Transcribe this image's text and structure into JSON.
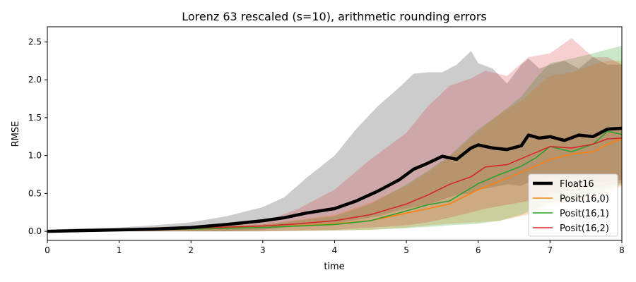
{
  "chart_data": {
    "type": "line",
    "title": "Lorenz 63 rescaled (s=10), arithmetic rounding errors",
    "xlabel": "time",
    "ylabel": "RMSE",
    "xlim": [
      0,
      8
    ],
    "ylim": [
      -0.12,
      2.7
    ],
    "x_ticks": [
      0,
      1,
      2,
      3,
      4,
      5,
      6,
      7,
      8
    ],
    "y_ticks": [
      0.0,
      0.5,
      1.0,
      1.5,
      2.0,
      2.5
    ],
    "x_tick_labels": [
      "0",
      "1",
      "2",
      "3",
      "4",
      "5",
      "6",
      "7",
      "8"
    ],
    "y_tick_labels": [
      "0.0",
      "0.5",
      "1.0",
      "1.5",
      "2.0",
      "2.5"
    ],
    "grid": false,
    "legend_position": "lower-right",
    "series": [
      {
        "name": "Float16",
        "color": "#000000",
        "line_width": "thick",
        "x": [
          0,
          0.5,
          1,
          1.5,
          2,
          2.5,
          3,
          3.3,
          3.6,
          4,
          4.3,
          4.6,
          4.9,
          5.1,
          5.3,
          5.5,
          5.7,
          5.9,
          6.0,
          6.2,
          6.4,
          6.6,
          6.7,
          6.85,
          7.0,
          7.2,
          7.4,
          7.6,
          7.8,
          8.0
        ],
        "y": [
          0.0,
          0.01,
          0.02,
          0.03,
          0.05,
          0.09,
          0.14,
          0.18,
          0.24,
          0.3,
          0.4,
          0.53,
          0.68,
          0.82,
          0.9,
          0.99,
          0.95,
          1.1,
          1.14,
          1.1,
          1.08,
          1.13,
          1.27,
          1.23,
          1.25,
          1.2,
          1.27,
          1.25,
          1.35,
          1.36
        ],
        "band_upper": [
          0.02,
          0.04,
          0.05,
          0.08,
          0.12,
          0.2,
          0.32,
          0.45,
          0.7,
          1.0,
          1.35,
          1.65,
          1.9,
          2.08,
          2.1,
          2.1,
          2.2,
          2.38,
          2.22,
          2.15,
          1.95,
          2.2,
          2.28,
          2.15,
          2.2,
          2.25,
          2.15,
          2.3,
          2.2,
          2.2
        ],
        "band_lower": [
          0.0,
          0.0,
          0.0,
          0.0,
          0.0,
          0.0,
          0.02,
          0.05,
          0.08,
          0.1,
          0.15,
          0.2,
          0.28,
          0.32,
          0.35,
          0.42,
          0.48,
          0.5,
          0.55,
          0.58,
          0.62,
          0.6,
          0.65,
          0.66,
          0.7,
          0.7,
          0.72,
          0.65,
          0.66,
          0.68
        ],
        "band_color": "#999999"
      },
      {
        "name": "Posit(16,0)",
        "color": "#ff7f0e",
        "line_width": "thin",
        "x": [
          0,
          1,
          2,
          3,
          4,
          4.5,
          5,
          5.3,
          5.6,
          6.0,
          6.3,
          6.6,
          6.8,
          7.0,
          7.3,
          7.6,
          7.8,
          8.0
        ],
        "y": [
          0.0,
          0.02,
          0.03,
          0.05,
          0.1,
          0.14,
          0.24,
          0.3,
          0.36,
          0.55,
          0.66,
          0.78,
          0.86,
          0.95,
          1.02,
          1.05,
          1.15,
          1.22
        ],
        "band_upper": [
          0.01,
          0.03,
          0.05,
          0.09,
          0.22,
          0.38,
          0.6,
          0.78,
          0.98,
          1.32,
          1.55,
          1.72,
          1.9,
          2.05,
          2.1,
          2.2,
          2.25,
          2.25
        ],
        "band_lower": [
          0.0,
          0.0,
          0.0,
          0.0,
          0.01,
          0.02,
          0.05,
          0.08,
          0.1,
          0.12,
          0.14,
          0.2,
          0.25,
          0.35,
          0.4,
          0.42,
          0.5,
          0.6
        ],
        "band_color": "#ff7f0e"
      },
      {
        "name": "Posit(16,1)",
        "color": "#2ca02c",
        "line_width": "thin",
        "x": [
          0,
          1,
          2,
          3,
          4,
          4.5,
          5,
          5.3,
          5.6,
          6.0,
          6.3,
          6.6,
          6.8,
          7.0,
          7.3,
          7.6,
          7.8,
          8.0
        ],
        "y": [
          0.0,
          0.02,
          0.03,
          0.05,
          0.09,
          0.14,
          0.27,
          0.35,
          0.4,
          0.63,
          0.75,
          0.86,
          0.97,
          1.12,
          1.05,
          1.15,
          1.32,
          1.28
        ],
        "band_upper": [
          0.01,
          0.03,
          0.05,
          0.09,
          0.2,
          0.36,
          0.62,
          0.8,
          1.0,
          1.35,
          1.55,
          1.78,
          2.02,
          2.22,
          2.28,
          2.35,
          2.4,
          2.45
        ],
        "band_lower": [
          0.0,
          0.0,
          0.0,
          0.0,
          0.01,
          0.02,
          0.04,
          0.06,
          0.08,
          0.1,
          0.14,
          0.22,
          0.3,
          0.38,
          0.42,
          0.48,
          0.55,
          0.62
        ],
        "band_color": "#2ca02c"
      },
      {
        "name": "Posit(16,2)",
        "color": "#d62728",
        "line_width": "thin",
        "x": [
          0,
          1,
          2,
          3,
          3.5,
          4,
          4.5,
          5,
          5.3,
          5.6,
          5.9,
          6.1,
          6.4,
          6.7,
          7.0,
          7.3,
          7.6,
          7.8,
          8.0
        ],
        "y": [
          0.0,
          0.02,
          0.04,
          0.07,
          0.1,
          0.14,
          0.22,
          0.36,
          0.48,
          0.62,
          0.72,
          0.85,
          0.88,
          1.0,
          1.12,
          1.1,
          1.15,
          1.22,
          1.23
        ],
        "band_upper": [
          0.01,
          0.03,
          0.06,
          0.12,
          0.3,
          0.55,
          0.95,
          1.3,
          1.65,
          1.92,
          2.02,
          2.12,
          2.05,
          2.3,
          2.35,
          2.55,
          2.3,
          2.3,
          2.2
        ],
        "band_lower": [
          0.0,
          0.0,
          0.0,
          0.0,
          0.01,
          0.02,
          0.05,
          0.08,
          0.12,
          0.18,
          0.25,
          0.3,
          0.35,
          0.4,
          0.48,
          0.55,
          0.58,
          0.6,
          0.64
        ],
        "band_color": "#d62728"
      }
    ]
  }
}
